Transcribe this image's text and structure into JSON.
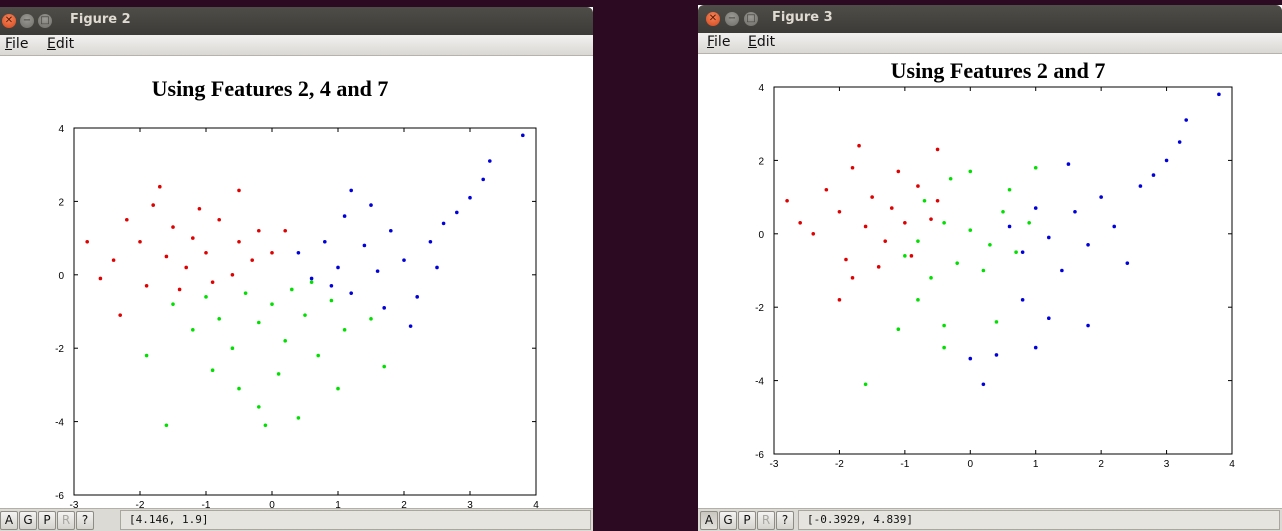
{
  "windows": [
    {
      "title": "Figure 2",
      "menu": [
        {
          "label": "File",
          "underline": "F",
          "rest": "ile"
        },
        {
          "label": "Edit",
          "underline": "E",
          "rest": "dit"
        }
      ],
      "status_buttons": [
        "A",
        "G",
        "P",
        "R",
        "?"
      ],
      "coordinates": "[4.146, 1.9]"
    },
    {
      "title": "Figure 3",
      "menu": [
        {
          "label": "File",
          "underline": "F",
          "rest": "ile"
        },
        {
          "label": "Edit",
          "underline": "E",
          "rest": "dit"
        }
      ],
      "status_buttons": [
        "A",
        "G",
        "P",
        "R",
        "?"
      ],
      "coordinates": "[-0.3929, 4.839]"
    }
  ],
  "chart_data": [
    {
      "type": "scatter",
      "title": "Using Features 2, 4 and 7",
      "xlim": [
        -3,
        4
      ],
      "ylim": [
        -6,
        4
      ],
      "x_ticks": [
        "-3",
        "-2",
        "-1",
        "0",
        "1",
        "2",
        "3",
        "4"
      ],
      "y_ticks": [
        "-6",
        "-4",
        "-2",
        "0",
        "2",
        "4"
      ],
      "grid": false,
      "series": [
        {
          "color": "#e00000",
          "points": [
            [
              -2.2,
              1.5
            ],
            [
              -2.0,
              0.9
            ],
            [
              -1.8,
              1.9
            ],
            [
              -1.6,
              0.5
            ],
            [
              -1.5,
              1.3
            ],
            [
              -1.3,
              0.2
            ],
            [
              -1.2,
              1.0
            ],
            [
              -1.0,
              0.6
            ],
            [
              -0.8,
              1.5
            ],
            [
              -0.6,
              0.0
            ],
            [
              -0.5,
              0.9
            ],
            [
              -0.3,
              0.4
            ],
            [
              -0.2,
              1.2
            ],
            [
              0.0,
              0.6
            ],
            [
              -2.4,
              0.4
            ],
            [
              -2.6,
              -0.1
            ],
            [
              -1.9,
              -0.3
            ],
            [
              -1.4,
              -0.4
            ],
            [
              -0.9,
              -0.2
            ],
            [
              -2.8,
              0.9
            ],
            [
              -2.3,
              -1.1
            ],
            [
              -1.7,
              2.4
            ],
            [
              -1.1,
              1.8
            ],
            [
              -0.5,
              2.3
            ],
            [
              0.2,
              1.2
            ]
          ]
        },
        {
          "color": "#00e000",
          "points": [
            [
              -1.5,
              -0.8
            ],
            [
              -1.2,
              -1.5
            ],
            [
              -1.0,
              -0.6
            ],
            [
              -0.8,
              -1.2
            ],
            [
              -0.6,
              -2.0
            ],
            [
              -0.4,
              -0.5
            ],
            [
              -0.2,
              -1.3
            ],
            [
              0.0,
              -0.8
            ],
            [
              0.2,
              -1.8
            ],
            [
              0.3,
              -0.4
            ],
            [
              0.5,
              -1.1
            ],
            [
              0.7,
              -2.2
            ],
            [
              0.9,
              -0.7
            ],
            [
              1.1,
              -1.5
            ],
            [
              -0.9,
              -2.6
            ],
            [
              -0.5,
              -3.1
            ],
            [
              -0.2,
              -3.6
            ],
            [
              0.1,
              -2.7
            ],
            [
              0.4,
              -3.9
            ],
            [
              1.0,
              -3.1
            ],
            [
              -1.6,
              -4.1
            ],
            [
              -1.9,
              -2.2
            ],
            [
              1.5,
              -1.2
            ],
            [
              1.7,
              -2.5
            ],
            [
              -0.1,
              -4.1
            ],
            [
              0.6,
              -0.2
            ]
          ]
        },
        {
          "color": "#0000dd",
          "points": [
            [
              0.4,
              0.6
            ],
            [
              0.6,
              -0.1
            ],
            [
              0.8,
              0.9
            ],
            [
              1.0,
              0.2
            ],
            [
              1.2,
              -0.5
            ],
            [
              1.4,
              0.8
            ],
            [
              1.6,
              0.1
            ],
            [
              1.8,
              1.2
            ],
            [
              2.0,
              0.4
            ],
            [
              2.2,
              -0.6
            ],
            [
              2.4,
              0.9
            ],
            [
              2.6,
              1.4
            ],
            [
              2.8,
              1.7
            ],
            [
              3.0,
              2.1
            ],
            [
              3.2,
              2.6
            ],
            [
              3.3,
              3.1
            ],
            [
              3.8,
              3.8
            ],
            [
              1.2,
              2.3
            ],
            [
              1.5,
              1.9
            ],
            [
              2.1,
              -1.4
            ],
            [
              1.7,
              -0.9
            ],
            [
              0.9,
              -0.3
            ],
            [
              2.5,
              0.2
            ],
            [
              1.1,
              1.6
            ]
          ]
        }
      ]
    },
    {
      "type": "scatter",
      "title": "Using Features 2 and 7",
      "xlim": [
        -3,
        4
      ],
      "ylim": [
        -6,
        4
      ],
      "x_ticks": [
        "-3",
        "-2",
        "-1",
        "0",
        "1",
        "2",
        "3",
        "4"
      ],
      "y_ticks": [
        "-6",
        "-4",
        "-2",
        "0",
        "2",
        "4"
      ],
      "grid": false,
      "series": [
        {
          "color": "#e00000",
          "points": [
            [
              -2.2,
              1.2
            ],
            [
              -2.0,
              0.6
            ],
            [
              -1.8,
              1.8
            ],
            [
              -1.6,
              0.2
            ],
            [
              -1.5,
              1.0
            ],
            [
              -1.3,
              -0.2
            ],
            [
              -1.2,
              0.7
            ],
            [
              -1.0,
              0.3
            ],
            [
              -0.8,
              1.3
            ],
            [
              -0.6,
              0.4
            ],
            [
              -0.5,
              0.9
            ],
            [
              -2.4,
              0.0
            ],
            [
              -2.6,
              0.3
            ],
            [
              -1.9,
              -0.7
            ],
            [
              -1.4,
              -0.9
            ],
            [
              -2.8,
              0.9
            ],
            [
              -1.7,
              2.4
            ],
            [
              -1.1,
              1.7
            ],
            [
              -0.5,
              2.3
            ],
            [
              -2.0,
              -1.8
            ],
            [
              -1.8,
              -1.2
            ],
            [
              -0.9,
              -0.6
            ]
          ]
        },
        {
          "color": "#00e000",
          "points": [
            [
              -1.0,
              -0.6
            ],
            [
              -0.8,
              -0.2
            ],
            [
              -0.6,
              -1.2
            ],
            [
              -0.4,
              0.3
            ],
            [
              -0.2,
              -0.8
            ],
            [
              0.0,
              0.1
            ],
            [
              0.2,
              -1.0
            ],
            [
              0.3,
              -0.3
            ],
            [
              0.5,
              0.6
            ],
            [
              0.7,
              -0.5
            ],
            [
              0.9,
              0.3
            ],
            [
              -0.3,
              1.5
            ],
            [
              0.0,
              1.7
            ],
            [
              0.6,
              1.2
            ],
            [
              1.0,
              1.8
            ],
            [
              -0.8,
              -1.8
            ],
            [
              -0.4,
              -2.5
            ],
            [
              -1.1,
              -2.6
            ],
            [
              -1.6,
              -4.1
            ],
            [
              -0.4,
              -3.1
            ],
            [
              0.4,
              -2.4
            ],
            [
              -0.7,
              0.9
            ]
          ]
        },
        {
          "color": "#0000dd",
          "points": [
            [
              0.6,
              0.2
            ],
            [
              0.8,
              -0.5
            ],
            [
              1.0,
              0.7
            ],
            [
              1.2,
              -0.1
            ],
            [
              1.4,
              -1.0
            ],
            [
              1.6,
              0.6
            ],
            [
              1.8,
              -0.3
            ],
            [
              2.0,
              1.0
            ],
            [
              2.2,
              0.2
            ],
            [
              2.4,
              -0.8
            ],
            [
              2.6,
              1.3
            ],
            [
              2.8,
              1.6
            ],
            [
              3.0,
              2.0
            ],
            [
              3.2,
              2.5
            ],
            [
              3.3,
              3.1
            ],
            [
              3.8,
              3.8
            ],
            [
              1.5,
              1.9
            ],
            [
              1.2,
              -2.3
            ],
            [
              1.8,
              -2.5
            ],
            [
              1.0,
              -3.1
            ],
            [
              0.4,
              -3.3
            ],
            [
              0.2,
              -4.1
            ],
            [
              0.0,
              -3.4
            ],
            [
              0.8,
              -1.8
            ]
          ]
        }
      ]
    }
  ]
}
